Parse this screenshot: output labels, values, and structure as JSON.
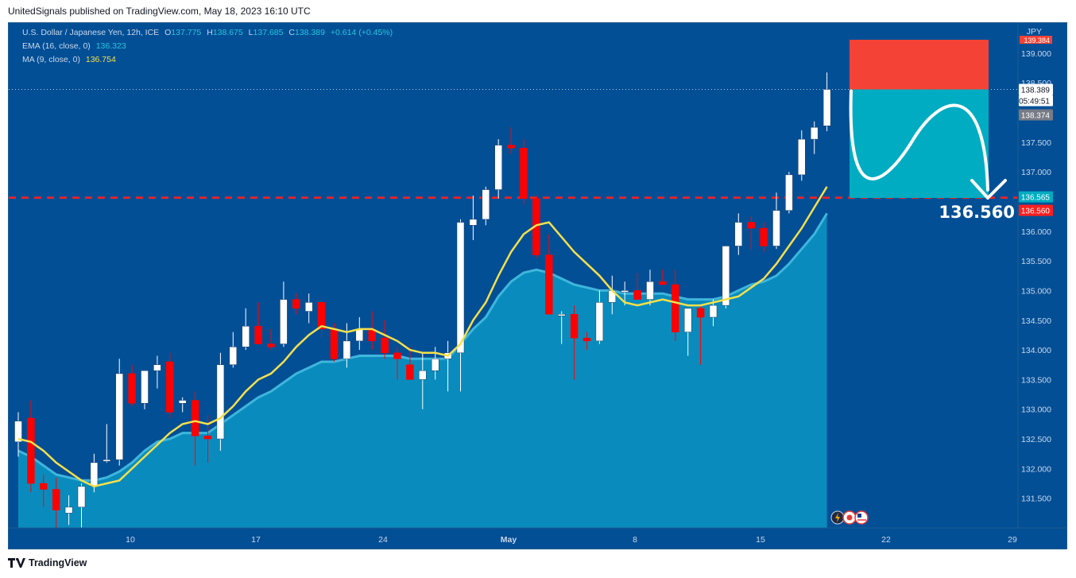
{
  "publisher_line": "UnitedSignals published on TradingView.com, May 18, 2023 16:10 UTC",
  "footer_brand": "TradingView",
  "legend": {
    "symbol": "U.S. Dollar / Japanese Yen, 12h, ICE",
    "o_label": "O",
    "o_value": "137.775",
    "h_label": "H",
    "h_value": "138.675",
    "l_label": "L",
    "l_value": "137.685",
    "c_label": "C",
    "c_value": "138.389",
    "change": "+0.614 (+0.45%)",
    "ema_label": "EMA (16, close, 0)",
    "ema_value": "136.323",
    "ma_label": "MA (9, close, 0)",
    "ma_value": "136.754"
  },
  "price_axis": {
    "currency": "JPY",
    "ticks": [
      "139.000",
      "138.500",
      "137.500",
      "137.000",
      "136.000",
      "135.500",
      "135.000",
      "134.500",
      "134.000",
      "133.500",
      "133.000",
      "132.500",
      "132.000",
      "131.500"
    ],
    "labels": {
      "last_price": "138.389",
      "countdown": "05:49:51",
      "gray_value": "138.374",
      "teal_value": "136.565",
      "red_value": "136.560",
      "top_partial": "139.384"
    }
  },
  "time_axis": {
    "ticks": [
      {
        "label": "10",
        "bold": false
      },
      {
        "label": "17",
        "bold": false
      },
      {
        "label": "24",
        "bold": false
      },
      {
        "label": "May",
        "bold": true
      },
      {
        "label": "8",
        "bold": false
      },
      {
        "label": "15",
        "bold": false
      },
      {
        "label": "22",
        "bold": false
      },
      {
        "label": "29",
        "bold": false
      }
    ]
  },
  "target_label": "136.560",
  "colors": {
    "background": "#034f96",
    "up": "#ffffff",
    "down": "#ff0000",
    "ema_area": "#0a8fbf",
    "ma_line": "#f5e04a",
    "stop_zone": "#f44336",
    "target_zone": "#00acc1",
    "level_line": "#ff1e1e"
  },
  "chart_data": {
    "type": "candlestick",
    "ylim": [
      131.0,
      139.4
    ],
    "candles": [
      {
        "o": 132.45,
        "h": 132.95,
        "l": 132.2,
        "c": 132.8
      },
      {
        "o": 132.85,
        "h": 133.15,
        "l": 131.6,
        "c": 131.75
      },
      {
        "o": 131.75,
        "h": 131.9,
        "l": 131.35,
        "c": 131.65
      },
      {
        "o": 131.65,
        "h": 131.85,
        "l": 131.0,
        "c": 131.3
      },
      {
        "o": 131.25,
        "h": 131.55,
        "l": 131.05,
        "c": 131.35
      },
      {
        "o": 131.35,
        "h": 131.75,
        "l": 131.0,
        "c": 131.7
      },
      {
        "o": 131.7,
        "h": 132.25,
        "l": 131.6,
        "c": 132.1
      },
      {
        "o": 132.15,
        "h": 132.75,
        "l": 132.1,
        "c": 132.15
      },
      {
        "o": 132.15,
        "h": 133.85,
        "l": 132.05,
        "c": 133.6
      },
      {
        "o": 133.6,
        "h": 133.75,
        "l": 133.05,
        "c": 133.1
      },
      {
        "o": 133.1,
        "h": 133.65,
        "l": 133.0,
        "c": 133.65
      },
      {
        "o": 133.65,
        "h": 133.9,
        "l": 133.35,
        "c": 133.75
      },
      {
        "o": 133.8,
        "h": 133.95,
        "l": 132.85,
        "c": 132.95
      },
      {
        "o": 133.1,
        "h": 133.2,
        "l": 132.95,
        "c": 133.15
      },
      {
        "o": 133.15,
        "h": 133.3,
        "l": 132.05,
        "c": 132.55
      },
      {
        "o": 132.55,
        "h": 132.9,
        "l": 132.1,
        "c": 132.5
      },
      {
        "o": 132.5,
        "h": 133.95,
        "l": 132.3,
        "c": 133.75
      },
      {
        "o": 133.75,
        "h": 134.3,
        "l": 133.7,
        "c": 134.05
      },
      {
        "o": 134.05,
        "h": 134.7,
        "l": 134.0,
        "c": 134.4
      },
      {
        "o": 134.4,
        "h": 134.8,
        "l": 134.1,
        "c": 134.1
      },
      {
        "o": 134.1,
        "h": 134.35,
        "l": 134.0,
        "c": 134.05
      },
      {
        "o": 134.1,
        "h": 135.15,
        "l": 134.05,
        "c": 134.85
      },
      {
        "o": 134.85,
        "h": 134.95,
        "l": 134.6,
        "c": 134.7
      },
      {
        "o": 134.65,
        "h": 134.95,
        "l": 134.45,
        "c": 134.8
      },
      {
        "o": 134.8,
        "h": 134.85,
        "l": 134.2,
        "c": 134.35
      },
      {
        "o": 134.35,
        "h": 134.45,
        "l": 133.8,
        "c": 133.85
      },
      {
        "o": 133.85,
        "h": 134.45,
        "l": 133.7,
        "c": 134.15
      },
      {
        "o": 134.15,
        "h": 134.55,
        "l": 134.0,
        "c": 134.35
      },
      {
        "o": 134.35,
        "h": 134.65,
        "l": 134.0,
        "c": 134.15
      },
      {
        "o": 134.2,
        "h": 134.5,
        "l": 133.85,
        "c": 133.95
      },
      {
        "o": 133.95,
        "h": 134.05,
        "l": 133.5,
        "c": 133.85
      },
      {
        "o": 133.75,
        "h": 134.05,
        "l": 133.5,
        "c": 133.5
      },
      {
        "o": 133.5,
        "h": 133.95,
        "l": 133.0,
        "c": 133.65
      },
      {
        "o": 133.65,
        "h": 134.05,
        "l": 133.5,
        "c": 133.85
      },
      {
        "o": 133.85,
        "h": 134.15,
        "l": 133.3,
        "c": 133.95
      },
      {
        "o": 133.95,
        "h": 136.2,
        "l": 133.3,
        "c": 136.15
      },
      {
        "o": 136.1,
        "h": 136.6,
        "l": 135.85,
        "c": 136.2
      },
      {
        "o": 136.2,
        "h": 136.75,
        "l": 136.1,
        "c": 136.7
      },
      {
        "o": 136.7,
        "h": 137.55,
        "l": 136.55,
        "c": 137.45
      },
      {
        "o": 137.45,
        "h": 137.75,
        "l": 137.3,
        "c": 137.4
      },
      {
        "o": 137.4,
        "h": 137.55,
        "l": 136.45,
        "c": 136.55
      },
      {
        "o": 136.55,
        "h": 136.6,
        "l": 135.55,
        "c": 135.6
      },
      {
        "o": 135.6,
        "h": 135.95,
        "l": 134.6,
        "c": 134.6
      },
      {
        "o": 134.6,
        "h": 134.65,
        "l": 134.1,
        "c": 134.6
      },
      {
        "o": 134.6,
        "h": 134.75,
        "l": 133.5,
        "c": 134.2
      },
      {
        "o": 134.2,
        "h": 134.3,
        "l": 134.0,
        "c": 134.15
      },
      {
        "o": 134.15,
        "h": 135.0,
        "l": 134.1,
        "c": 134.8
      },
      {
        "o": 134.8,
        "h": 135.25,
        "l": 134.6,
        "c": 135.0
      },
      {
        "o": 135.0,
        "h": 135.15,
        "l": 134.75,
        "c": 135.0
      },
      {
        "o": 135.0,
        "h": 135.3,
        "l": 134.9,
        "c": 134.85
      },
      {
        "o": 134.85,
        "h": 135.35,
        "l": 134.75,
        "c": 135.15
      },
      {
        "o": 135.15,
        "h": 135.35,
        "l": 135.1,
        "c": 135.1
      },
      {
        "o": 135.1,
        "h": 135.35,
        "l": 134.15,
        "c": 134.3
      },
      {
        "o": 134.3,
        "h": 134.7,
        "l": 133.9,
        "c": 134.7
      },
      {
        "o": 134.7,
        "h": 134.75,
        "l": 133.75,
        "c": 134.55
      },
      {
        "o": 134.55,
        "h": 134.85,
        "l": 134.4,
        "c": 134.75
      },
      {
        "o": 134.75,
        "h": 135.75,
        "l": 134.7,
        "c": 135.75
      },
      {
        "o": 135.75,
        "h": 136.3,
        "l": 135.6,
        "c": 136.15
      },
      {
        "o": 136.15,
        "h": 136.25,
        "l": 135.7,
        "c": 136.05
      },
      {
        "o": 136.05,
        "h": 136.15,
        "l": 135.65,
        "c": 135.75
      },
      {
        "o": 135.75,
        "h": 136.65,
        "l": 135.7,
        "c": 136.35
      },
      {
        "o": 136.35,
        "h": 137.0,
        "l": 136.3,
        "c": 136.95
      },
      {
        "o": 136.95,
        "h": 137.7,
        "l": 136.85,
        "c": 137.55
      },
      {
        "o": 137.55,
        "h": 137.85,
        "l": 137.3,
        "c": 137.75
      },
      {
        "o": 137.775,
        "h": 138.675,
        "l": 137.685,
        "c": 138.389
      }
    ],
    "ema_16": [
      132.3,
      132.2,
      132.05,
      131.9,
      131.85,
      131.8,
      131.8,
      131.85,
      131.95,
      132.1,
      132.3,
      132.45,
      132.5,
      132.6,
      132.6,
      132.6,
      132.75,
      132.9,
      133.05,
      133.2,
      133.3,
      133.45,
      133.6,
      133.7,
      133.8,
      133.8,
      133.85,
      133.9,
      133.9,
      133.9,
      133.9,
      133.85,
      133.85,
      133.85,
      133.85,
      134.1,
      134.35,
      134.55,
      134.9,
      135.15,
      135.3,
      135.35,
      135.3,
      135.2,
      135.1,
      135.05,
      135.0,
      135.0,
      134.95,
      134.95,
      134.95,
      134.95,
      134.9,
      134.85,
      134.85,
      134.85,
      134.9,
      135.0,
      135.1,
      135.15,
      135.25,
      135.45,
      135.7,
      135.95,
      136.3
    ],
    "ma_9": [
      132.5,
      132.45,
      132.3,
      132.1,
      131.95,
      131.8,
      131.7,
      131.75,
      131.8,
      132.0,
      132.2,
      132.4,
      132.6,
      132.75,
      132.8,
      132.75,
      132.85,
      133.05,
      133.3,
      133.5,
      133.6,
      133.8,
      134.05,
      134.25,
      134.4,
      134.35,
      134.3,
      134.35,
      134.35,
      134.25,
      134.15,
      134.0,
      133.95,
      133.95,
      133.9,
      134.1,
      134.5,
      134.8,
      135.25,
      135.65,
      135.95,
      136.1,
      136.15,
      135.9,
      135.65,
      135.45,
      135.25,
      135.0,
      134.8,
      134.75,
      134.8,
      134.85,
      134.8,
      134.75,
      134.75,
      134.8,
      134.85,
      134.9,
      135.05,
      135.2,
      135.45,
      135.75,
      136.05,
      136.4,
      136.75
    ],
    "horizontal_level": 136.565,
    "position_tool": {
      "entry": 138.389,
      "stop": 139.6,
      "target": 136.56
    },
    "xlabel": "",
    "ylabel": ""
  }
}
